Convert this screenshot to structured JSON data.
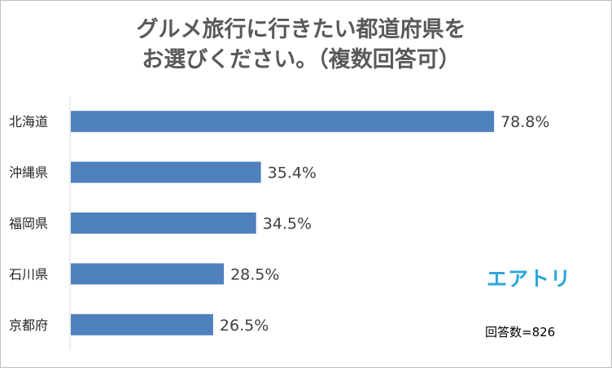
{
  "chart_data": {
    "type": "bar",
    "orientation": "horizontal",
    "title_lines": [
      "グルメ旅行に行きたい都道府県を",
      "お選びください。（複数回答可）"
    ],
    "categories": [
      "北海道",
      "沖縄県",
      "福岡県",
      "石川県",
      "京都府"
    ],
    "values": [
      78.8,
      35.4,
      34.5,
      28.5,
      26.5
    ],
    "data_labels": [
      "78.8%",
      "35.4%",
      "34.5%",
      "28.5%",
      "26.5%"
    ],
    "xlim": [
      0,
      100
    ],
    "grid": false,
    "legend": "none",
    "bar_color": "#4f81bd"
  },
  "branding": {
    "logo_text": "エアトリ",
    "logo_color": "#2aa7d8"
  },
  "footnote": {
    "sample_text": "回答数=826"
  }
}
